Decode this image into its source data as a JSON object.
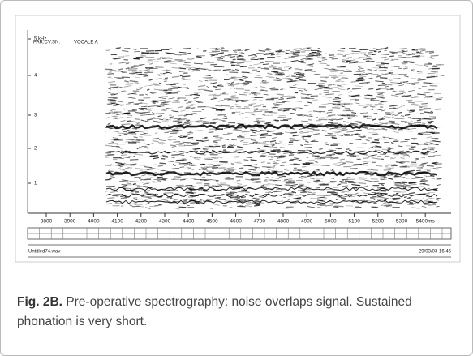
{
  "figure": {
    "header": [
      "PAR.CV.SN:",
      "VOCALE  A"
    ],
    "y_labels": [
      "5 kHz",
      "4",
      "3",
      "2",
      "1"
    ],
    "x_labels": [
      "3800",
      "3900",
      "4000",
      "4100",
      "4200",
      "4300",
      "4400",
      "4500",
      "4600",
      "4700",
      "4800",
      "4900",
      "5000",
      "5100",
      "5200",
      "5300",
      "5400ms"
    ],
    "file_name": "Untitled74.wav",
    "timestamp": "29/03/03 16.46"
  },
  "caption": {
    "label": "Fig. 2B.",
    "text": "Pre-operative spectrography: noise overlaps signal. Sustained phonation is very short."
  }
}
